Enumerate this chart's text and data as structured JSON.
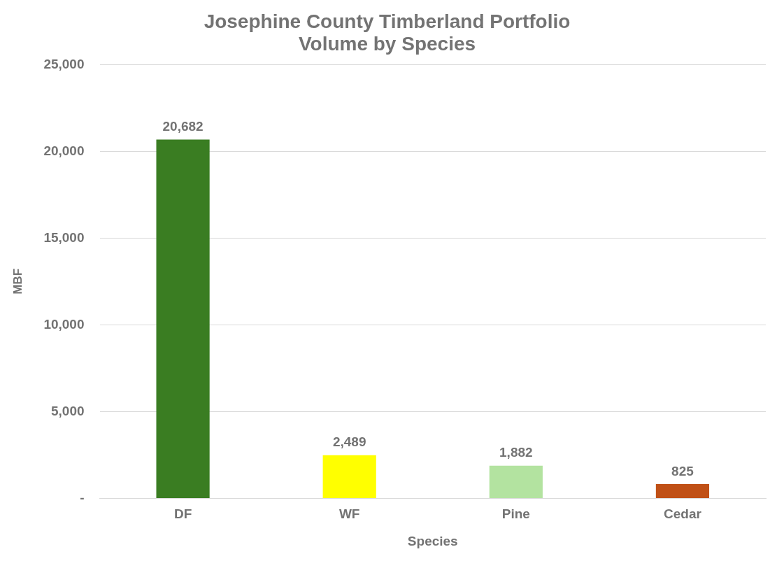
{
  "chart_data": {
    "type": "bar",
    "title": "Josephine County Timberland Portfolio\nVolume by Species",
    "xlabel": "Species",
    "ylabel": "MBF",
    "categories": [
      "DF",
      "WF",
      "Pine",
      "Cedar"
    ],
    "values": [
      20682,
      2489,
      1882,
      825
    ],
    "colors": [
      "#3a7d22",
      "#ffff00",
      "#b3e3a0",
      "#c05016"
    ],
    "ylim": [
      0,
      25000
    ],
    "yticks": [
      {
        "value": 0,
        "label": "-"
      },
      {
        "value": 5000,
        "label": "5,000"
      },
      {
        "value": 10000,
        "label": "10,000"
      },
      {
        "value": 15000,
        "label": "15,000"
      },
      {
        "value": 20000,
        "label": "20,000"
      },
      {
        "value": 25000,
        "label": "25,000"
      }
    ],
    "value_labels": [
      "20,682",
      "2,489",
      "1,882",
      "825"
    ],
    "grid": "y",
    "legend": false
  }
}
